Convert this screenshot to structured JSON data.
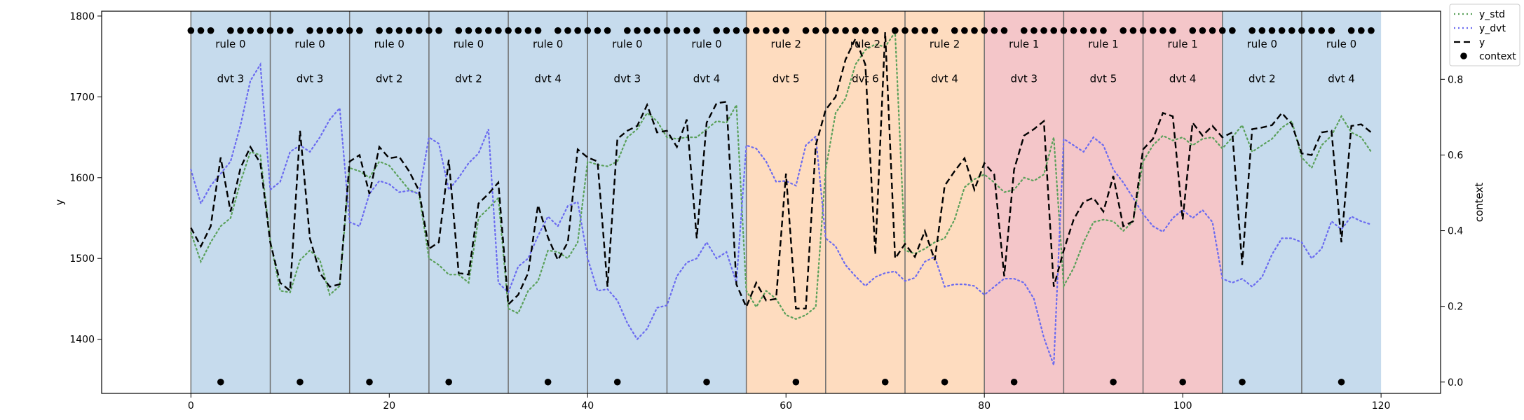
{
  "chart_data": {
    "type": "line",
    "ylabel": "y",
    "y2label": "context",
    "xlim": [
      -9,
      126
    ],
    "ylim": [
      1333,
      1806
    ],
    "y2lim": [
      -0.03,
      0.98
    ],
    "xticks": [
      0,
      20,
      40,
      60,
      80,
      100,
      120
    ],
    "yticks": [
      1400,
      1500,
      1600,
      1700,
      1800
    ],
    "y2ticks": [
      0.0,
      0.2,
      0.4,
      0.6,
      0.8
    ],
    "legend_position": "top-right",
    "segment_colors": {
      "rule 0": "#c6dbed",
      "rule 1": "#f4c6c9",
      "rule 2": "#fedcbf"
    },
    "segments": [
      {
        "start": 0,
        "end": 8,
        "rule": "rule 0",
        "dvt": "dvt 3",
        "dot_x": 3
      },
      {
        "start": 8,
        "end": 16,
        "rule": "rule 0",
        "dvt": "dvt 3",
        "dot_x": 11
      },
      {
        "start": 16,
        "end": 24,
        "rule": "rule 0",
        "dvt": "dvt 2",
        "dot_x": 18
      },
      {
        "start": 24,
        "end": 32,
        "rule": "rule 0",
        "dvt": "dvt 2",
        "dot_x": 26
      },
      {
        "start": 32,
        "end": 40,
        "rule": "rule 0",
        "dvt": "dvt 4",
        "dot_x": 36
      },
      {
        "start": 40,
        "end": 48,
        "rule": "rule 0",
        "dvt": "dvt 3",
        "dot_x": 43
      },
      {
        "start": 48,
        "end": 56,
        "rule": "rule 0",
        "dvt": "dvt 4",
        "dot_x": 52
      },
      {
        "start": 56,
        "end": 64,
        "rule": "rule 2",
        "dvt": "dvt 5",
        "dot_x": 61
      },
      {
        "start": 64,
        "end": 72,
        "rule": "rule 2",
        "dvt": "dvt 6",
        "dot_x": 70
      },
      {
        "start": 72,
        "end": 80,
        "rule": "rule 2",
        "dvt": "dvt 4",
        "dot_x": 76
      },
      {
        "start": 80,
        "end": 88,
        "rule": "rule 1",
        "dvt": "dvt 3",
        "dot_x": 83
      },
      {
        "start": 88,
        "end": 96,
        "rule": "rule 1",
        "dvt": "dvt 5",
        "dot_x": 93
      },
      {
        "start": 96,
        "end": 104,
        "rule": "rule 1",
        "dvt": "dvt 4",
        "dot_x": 100
      },
      {
        "start": 104,
        "end": 112,
        "rule": "rule 0",
        "dvt": "dvt 2",
        "dot_x": 106
      },
      {
        "start": 112,
        "end": 120,
        "rule": "rule 0",
        "dvt": "dvt 4",
        "dot_x": 116
      }
    ],
    "series": [
      {
        "name": "y_std",
        "color": "#5aa05a",
        "style": "dotted",
        "axis": "left",
        "values": [
          1532,
          1496,
          1520,
          1540,
          1550,
          1595,
          1632,
          1628,
          1522,
          1460,
          1458,
          1498,
          1510,
          1498,
          1455,
          1466,
          1612,
          1608,
          1600,
          1620,
          1615,
          1600,
          1585,
          1580,
          1500,
          1492,
          1480,
          1480,
          1470,
          1550,
          1562,
          1575,
          1438,
          1432,
          1460,
          1472,
          1510,
          1508,
          1500,
          1520,
          1620,
          1616,
          1614,
          1620,
          1650,
          1660,
          1680,
          1670,
          1650,
          1648,
          1650,
          1650,
          1660,
          1670,
          1668,
          1690,
          1460,
          1440,
          1460,
          1450,
          1430,
          1425,
          1430,
          1440,
          1610,
          1680,
          1698,
          1740,
          1758,
          1765,
          1762,
          1780,
          1510,
          1506,
          1512,
          1520,
          1525,
          1548,
          1588,
          1598,
          1604,
          1594,
          1582,
          1585,
          1600,
          1596,
          1604,
          1650,
          1466,
          1488,
          1520,
          1545,
          1548,
          1546,
          1534,
          1546,
          1620,
          1640,
          1652,
          1646,
          1650,
          1640,
          1648,
          1650,
          1636,
          1650,
          1665,
          1632,
          1640,
          1648,
          1662,
          1670,
          1625,
          1612,
          1640,
          1652,
          1676,
          1656,
          1650,
          1632
        ]
      },
      {
        "name": "y_dvt",
        "color": "#6a6af0",
        "style": "dotted",
        "axis": "left",
        "values": [
          1610,
          1568,
          1590,
          1605,
          1620,
          1665,
          1720,
          1740,
          1585,
          1595,
          1632,
          1640,
          1632,
          1650,
          1672,
          1686,
          1545,
          1540,
          1580,
          1596,
          1592,
          1582,
          1584,
          1580,
          1650,
          1642,
          1585,
          1600,
          1618,
          1630,
          1660,
          1470,
          1458,
          1490,
          1500,
          1528,
          1552,
          1540,
          1565,
          1570,
          1500,
          1460,
          1462,
          1448,
          1420,
          1400,
          1413,
          1439,
          1442,
          1478,
          1495,
          1500,
          1520,
          1500,
          1508,
          1470,
          1640,
          1636,
          1620,
          1595,
          1596,
          1590,
          1640,
          1651,
          1525,
          1515,
          1492,
          1478,
          1466,
          1477,
          1482,
          1484,
          1472,
          1476,
          1496,
          1502,
          1465,
          1468,
          1468,
          1466,
          1455,
          1465,
          1475,
          1475,
          1470,
          1450,
          1402,
          1368,
          1648,
          1640,
          1632,
          1650,
          1640,
          1610,
          1594,
          1575,
          1555,
          1540,
          1533,
          1550,
          1560,
          1550,
          1560,
          1545,
          1475,
          1470,
          1475,
          1465,
          1477,
          1505,
          1525,
          1525,
          1520,
          1500,
          1512,
          1546,
          1536,
          1552,
          1546,
          1542
        ]
      },
      {
        "name": "y",
        "color": "#000000",
        "style": "dashed",
        "axis": "left",
        "values": [
          1538,
          1515,
          1540,
          1625,
          1558,
          1612,
          1638,
          1618,
          1520,
          1470,
          1460,
          1658,
          1525,
          1482,
          1465,
          1468,
          1620,
          1628,
          1580,
          1638,
          1624,
          1626,
          1608,
          1584,
          1512,
          1520,
          1622,
          1482,
          1480,
          1568,
          1580,
          1594,
          1443,
          1455,
          1482,
          1566,
          1526,
          1498,
          1520,
          1635,
          1625,
          1620,
          1465,
          1648,
          1658,
          1664,
          1690,
          1656,
          1658,
          1638,
          1672,
          1525,
          1668,
          1692,
          1694,
          1468,
          1440,
          1470,
          1448,
          1450,
          1605,
          1438,
          1438,
          1640,
          1684,
          1700,
          1746,
          1772,
          1740,
          1505,
          1780,
          1500,
          1518,
          1502,
          1534,
          1498,
          1590,
          1608,
          1624,
          1585,
          1618,
          1604,
          1478,
          1610,
          1652,
          1660,
          1670,
          1465,
          1510,
          1548,
          1570,
          1575,
          1558,
          1602,
          1540,
          1546,
          1635,
          1648,
          1680,
          1676,
          1548,
          1668,
          1652,
          1664,
          1650,
          1656,
          1492,
          1660,
          1662,
          1665,
          1680,
          1666,
          1630,
          1628,
          1656,
          1658,
          1520,
          1664,
          1666,
          1656
        ]
      },
      {
        "name": "context",
        "color": "#000000",
        "style": "markers",
        "axis": "right",
        "values": [
          1,
          1,
          1,
          0,
          1,
          1,
          1,
          1,
          1,
          1,
          1,
          0,
          1,
          1,
          1,
          1,
          1,
          1,
          0,
          1,
          1,
          1,
          1,
          1,
          1,
          1,
          0,
          1,
          1,
          1,
          1,
          1,
          1,
          1,
          1,
          1,
          0,
          1,
          1,
          1,
          1,
          1,
          1,
          0,
          1,
          1,
          1,
          1,
          1,
          1,
          1,
          1,
          0,
          1,
          1,
          1,
          1,
          1,
          1,
          1,
          1,
          0,
          1,
          1,
          1,
          1,
          1,
          1,
          1,
          1,
          0,
          1,
          1,
          1,
          1,
          1,
          0,
          1,
          1,
          1,
          1,
          1,
          1,
          0,
          1,
          1,
          1,
          1,
          1,
          1,
          1,
          1,
          1,
          0,
          1,
          1,
          1,
          1,
          1,
          1,
          0,
          1,
          1,
          1,
          1,
          1,
          0,
          1,
          1,
          1,
          1,
          1,
          1,
          1,
          1,
          1,
          0,
          1,
          1,
          1
        ]
      }
    ]
  }
}
